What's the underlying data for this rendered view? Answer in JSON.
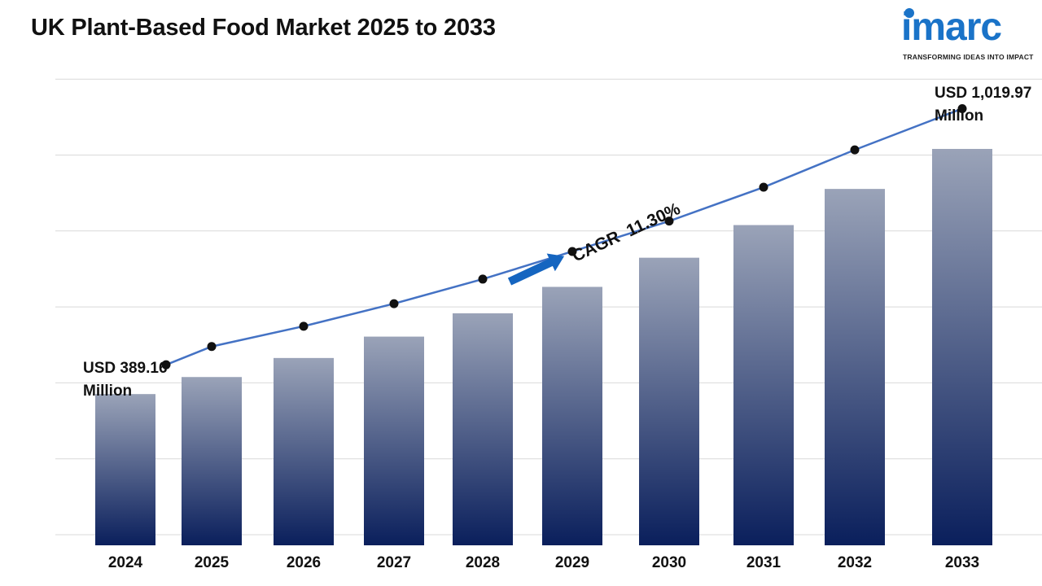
{
  "header": {
    "title": "UK Plant-Based Food Market 2025 to 2033"
  },
  "logo": {
    "word": "imarc",
    "tagline": "TRANSFORMING IDEAS INTO IMPACT",
    "color": "#1a73c8"
  },
  "callouts": {
    "start_value": "USD 389.16",
    "start_unit": "Million",
    "end_value": "USD 1,019.97",
    "end_unit": "Million",
    "cagr": "CAGR  11.30%"
  },
  "chart_data": {
    "type": "bar",
    "title": "UK Plant-Based Food Market 2025 to 2033",
    "categories": [
      "2024",
      "2025",
      "2026",
      "2027",
      "2028",
      "2029",
      "2030",
      "2031",
      "2032",
      "2033"
    ],
    "series": [
      {
        "values": [
          389.16,
          433,
          482,
          537,
          597,
          665,
          740,
          824,
          917,
          1019.97
        ]
      }
    ],
    "trend_line": true,
    "ylim": [
      0,
      1200
    ],
    "grid": true,
    "bar_gradient": [
      "#9aa3b8",
      "#0a1f5c"
    ],
    "line_color": "#4472c4",
    "arrow_color": "#1565c0"
  }
}
